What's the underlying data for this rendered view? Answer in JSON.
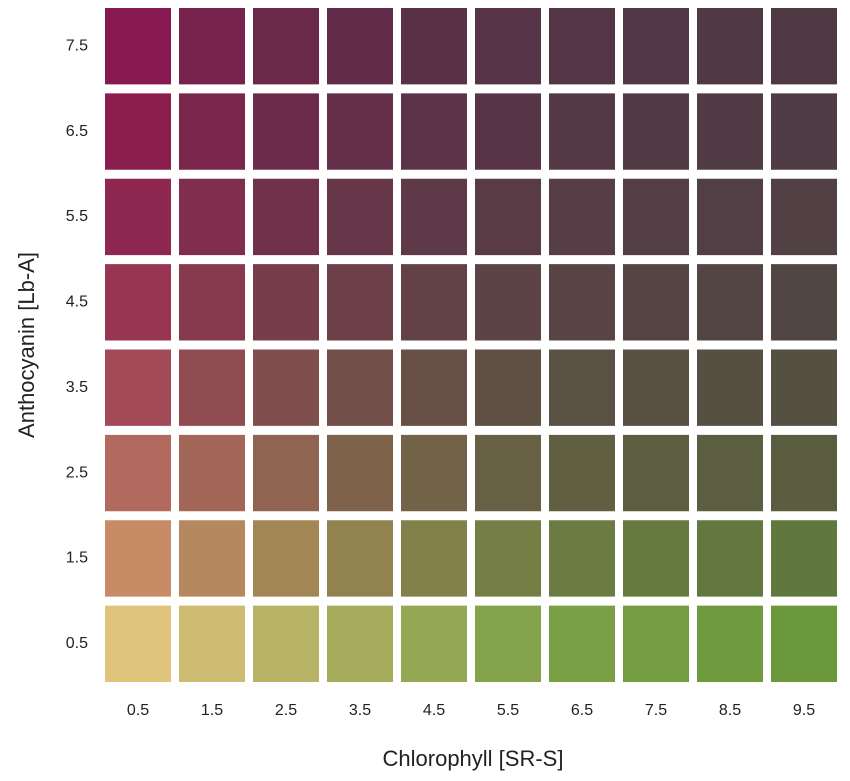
{
  "chart_data": {
    "type": "heatmap",
    "x_label": "Chlorophyll [SR-S]",
    "y_label": "Anthocyanin [Lb-A]",
    "x": [
      0.5,
      1.5,
      2.5,
      3.5,
      4.5,
      5.5,
      6.5,
      7.5,
      8.5,
      9.5
    ],
    "y": [
      0.5,
      1.5,
      2.5,
      3.5,
      4.5,
      5.5,
      6.5,
      7.5
    ],
    "colors": [
      [
        "#e0c47c",
        "#cdbc72",
        "#b8b466",
        "#a5ad5c",
        "#94a853",
        "#85a34b",
        "#7aa045",
        "#749d41",
        "#6f9b3e",
        "#6b983b"
      ],
      [
        "#c98a66",
        "#b5885f",
        "#a38655",
        "#91834f",
        "#82814a",
        "#757e45",
        "#6b7b42",
        "#667a40",
        "#62783e",
        "#60783d"
      ],
      [
        "#b36a5e",
        "#a26756",
        "#8f6450",
        "#7e634a",
        "#726247",
        "#676044",
        "#615f42",
        "#5d5e41",
        "#5b5e40",
        "#5a5d40"
      ],
      [
        "#a24a58",
        "#914c52",
        "#804e4d",
        "#724f48",
        "#685046",
        "#5f5044",
        "#5a5043",
        "#575043",
        "#555042",
        "#545042"
      ],
      [
        "#983552",
        "#87394e",
        "#773d4b",
        "#6c3f49",
        "#634247",
        "#5c4345",
        "#584444",
        "#554444",
        "#534544",
        "#524644"
      ],
      [
        "#8e2850",
        "#7f2e4d",
        "#70324b",
        "#673649",
        "#5e3947",
        "#593b46",
        "#563d46",
        "#533e45",
        "#523f45",
        "#514044"
      ],
      [
        "#8a1f4f",
        "#7b264c",
        "#6d2b4b",
        "#642f49",
        "#5c3347",
        "#573546",
        "#543846",
        "#523a45",
        "#513b45",
        "#503c44"
      ],
      [
        "#86194f",
        "#77224c",
        "#6a284a",
        "#612c49",
        "#5a3047",
        "#563346",
        "#533546",
        "#513745",
        "#503945",
        "#4f3a44"
      ]
    ]
  }
}
